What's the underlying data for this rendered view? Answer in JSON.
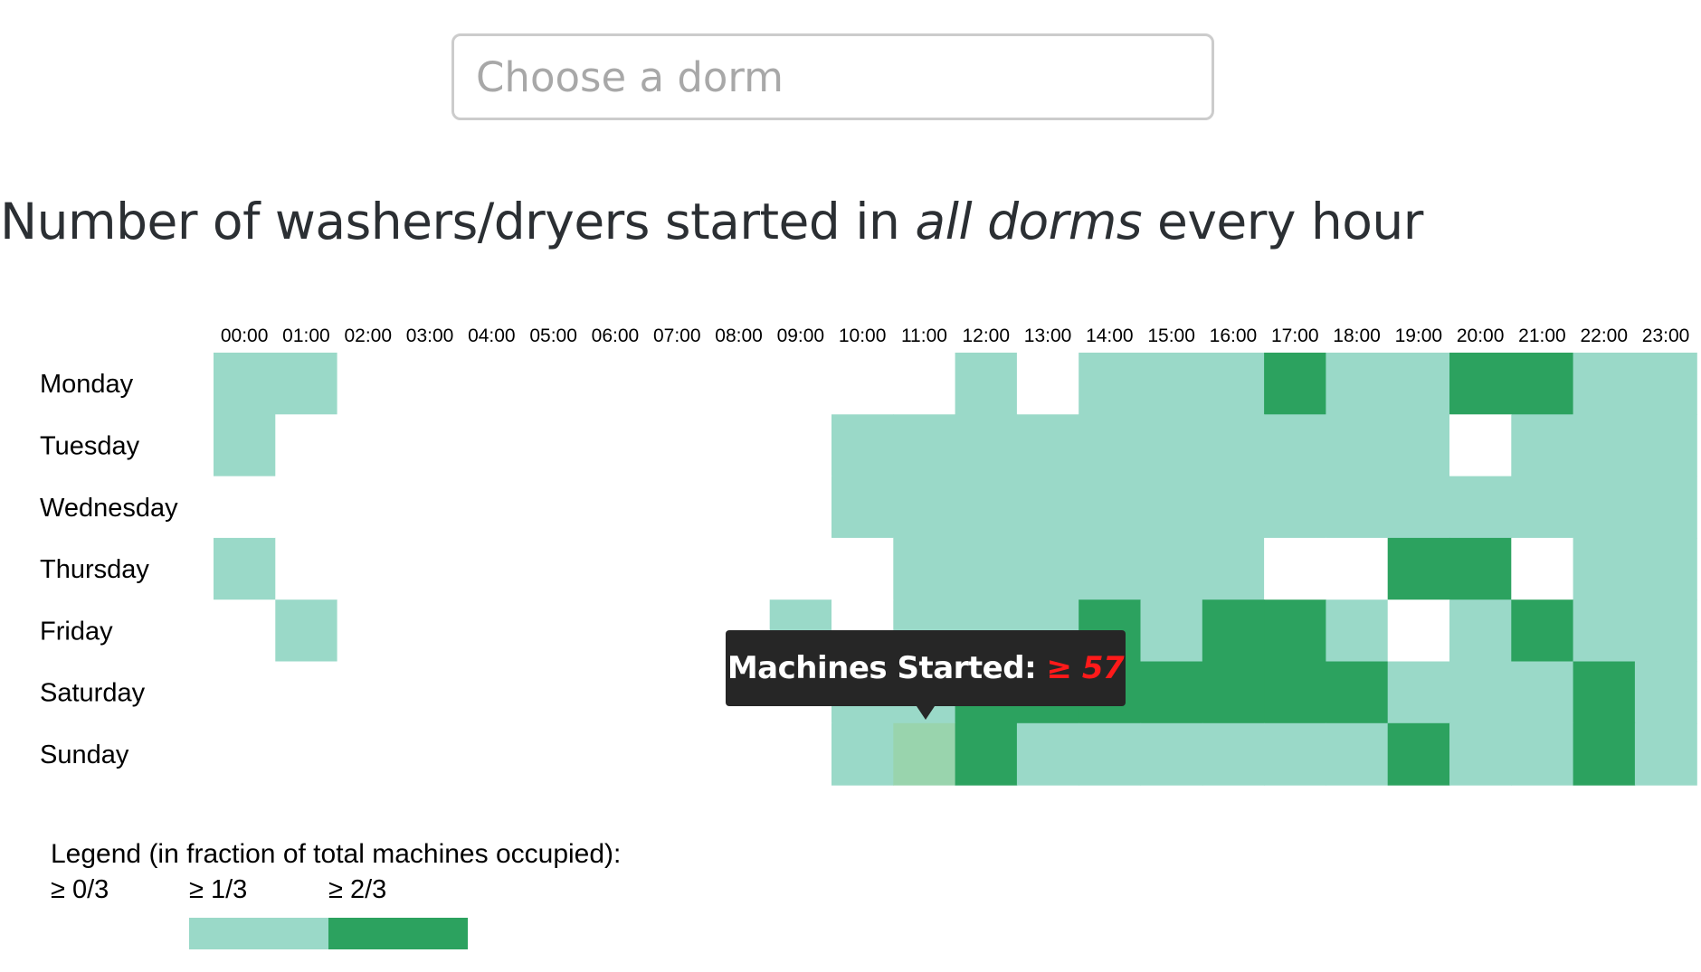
{
  "search": {
    "placeholder": "Choose a dorm",
    "value": ""
  },
  "title": {
    "prefix": "Number of washers/dryers started in ",
    "emphasis": "all dorms",
    "suffix": " every hour"
  },
  "tooltip": {
    "label": "Machines Started:",
    "value": "≥ 57"
  },
  "legend": {
    "title": "Legend (in fraction of total machines occupied):",
    "items": [
      {
        "label": "≥ 0/3",
        "color": ""
      },
      {
        "label": "≥ 1/3",
        "color": "#9ad9c8"
      },
      {
        "label": "≥ 2/3",
        "color": "#2ca25f"
      }
    ]
  },
  "colors": {
    "level0": "#ffffff",
    "level1": "#9ad9c8",
    "level2": "#2ca25f",
    "hover": "#99d4ad",
    "tooltip_bg": "#262626",
    "tooltip_value": "#ff1a1a"
  },
  "chart_data": {
    "type": "heatmap",
    "x": [
      "00:00",
      "01:00",
      "02:00",
      "03:00",
      "04:00",
      "05:00",
      "06:00",
      "07:00",
      "08:00",
      "09:00",
      "10:00",
      "11:00",
      "12:00",
      "13:00",
      "14:00",
      "15:00",
      "16:00",
      "17:00",
      "18:00",
      "19:00",
      "20:00",
      "21:00",
      "22:00",
      "23:00"
    ],
    "y": [
      "Monday",
      "Tuesday",
      "Wednesday",
      "Thursday",
      "Friday",
      "Saturday",
      "Sunday"
    ],
    "levels": [
      [
        1,
        1,
        0,
        0,
        0,
        0,
        0,
        0,
        0,
        0,
        0,
        0,
        1,
        0,
        1,
        1,
        1,
        2,
        1,
        1,
        2,
        2,
        1,
        1
      ],
      [
        1,
        0,
        0,
        0,
        0,
        0,
        0,
        0,
        0,
        0,
        1,
        1,
        1,
        1,
        1,
        1,
        1,
        1,
        1,
        1,
        0,
        1,
        1,
        1
      ],
      [
        0,
        0,
        0,
        0,
        0,
        0,
        0,
        0,
        0,
        0,
        1,
        1,
        1,
        1,
        1,
        1,
        1,
        1,
        1,
        1,
        1,
        1,
        1,
        1
      ],
      [
        1,
        0,
        0,
        0,
        0,
        0,
        0,
        0,
        0,
        0,
        0,
        1,
        1,
        1,
        1,
        1,
        1,
        0,
        0,
        2,
        2,
        0,
        1,
        1
      ],
      [
        0,
        1,
        0,
        0,
        0,
        0,
        0,
        0,
        0,
        1,
        0,
        1,
        1,
        1,
        2,
        1,
        2,
        2,
        1,
        0,
        1,
        2,
        1,
        1
      ],
      [
        0,
        0,
        0,
        0,
        0,
        0,
        0,
        0,
        0,
        0,
        1,
        1,
        2,
        2,
        2,
        2,
        2,
        2,
        2,
        1,
        1,
        1,
        2,
        1
      ],
      [
        0,
        0,
        0,
        0,
        0,
        0,
        0,
        0,
        0,
        0,
        1,
        1,
        2,
        1,
        1,
        1,
        1,
        1,
        1,
        2,
        1,
        1,
        2,
        1
      ]
    ],
    "highlighted": {
      "day": "Sunday",
      "hour": "11:00"
    },
    "legend_levels": [
      "≥ 0/3",
      "≥ 1/3",
      "≥ 2/3"
    ]
  }
}
